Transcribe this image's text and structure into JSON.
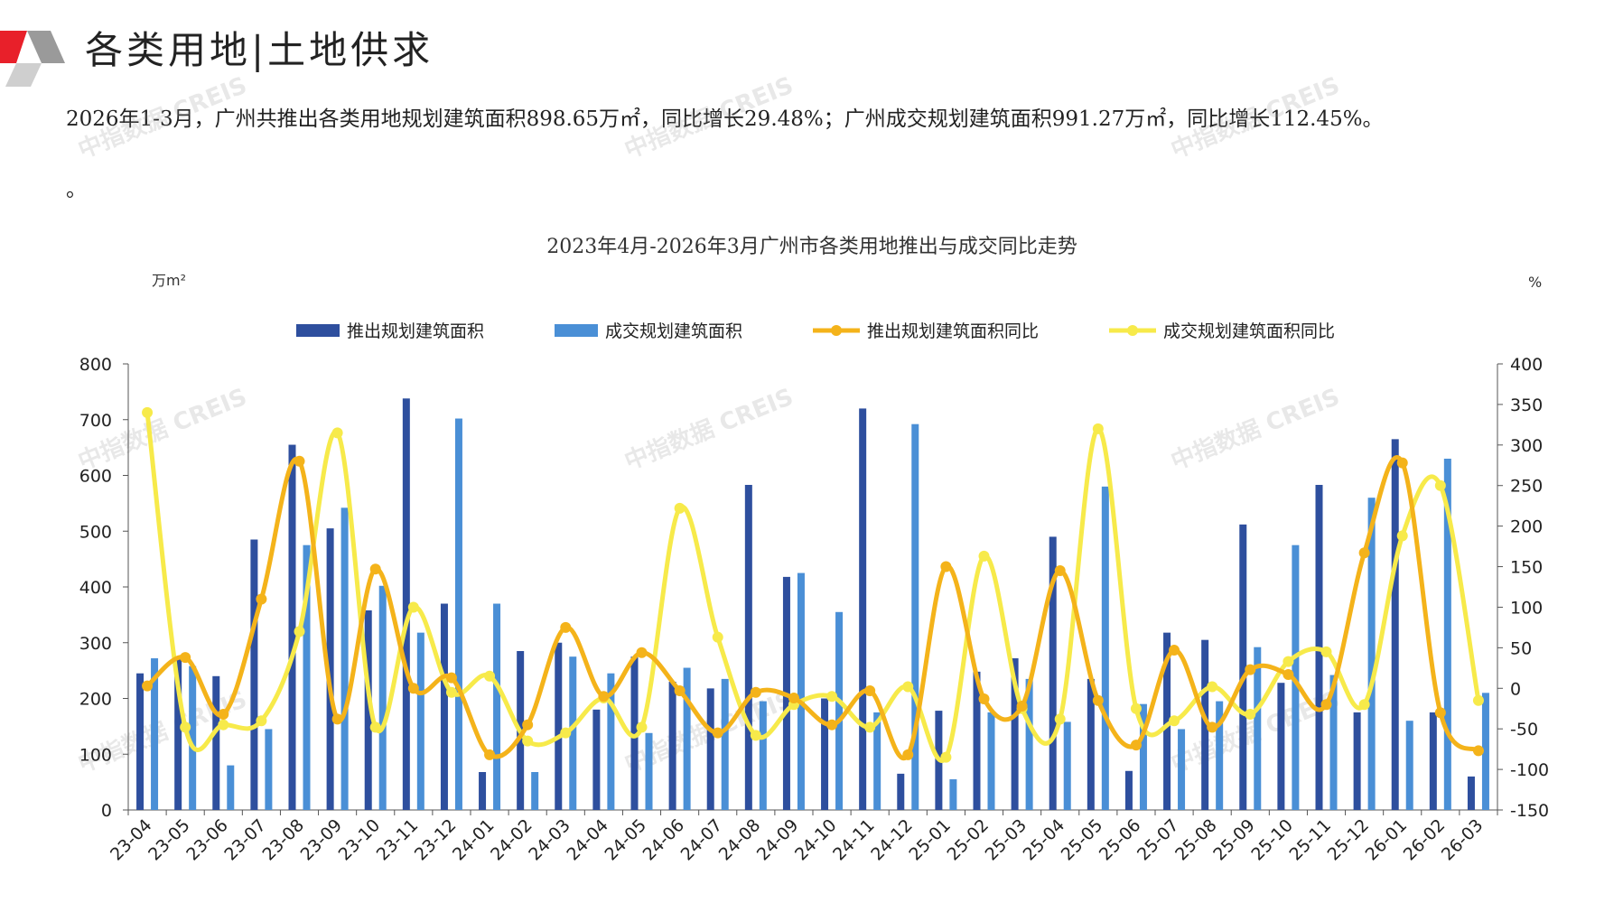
{
  "header": {
    "title": "各类用地|土地供求",
    "accent_colors": [
      "#e8202a",
      "#9a9a9a"
    ]
  },
  "summary": {
    "text": "2026年1-3月，广州共推出各类用地规划建筑面积898.65万㎡，同比增长29.48%；广州成交规划建筑面积991.27万㎡，同比增长112.45%。",
    "trailing": "。"
  },
  "watermark": "中指数据 CREIS",
  "chart_data": {
    "type": "bar",
    "title": "2023年4月-2026年3月广州市各类用地推出与成交同比走势",
    "left_unit": "万m²",
    "right_unit": "%",
    "ylim_left": [
      0,
      800
    ],
    "ylim_right": [
      -150,
      400
    ],
    "yticks_left": [
      0,
      100,
      200,
      300,
      400,
      500,
      600,
      700,
      800
    ],
    "yticks_right": [
      -150,
      -100,
      -50,
      0,
      50,
      100,
      150,
      200,
      250,
      300,
      350,
      400
    ],
    "legend_position": "top",
    "categories": [
      "23-04",
      "23-05",
      "23-06",
      "23-07",
      "23-08",
      "23-09",
      "23-10",
      "23-11",
      "23-12",
      "24-01",
      "24-02",
      "24-03",
      "24-04",
      "24-05",
      "24-06",
      "24-07",
      "24-08",
      "24-09",
      "24-10",
      "24-11",
      "24-12",
      "25-01",
      "25-02",
      "25-03",
      "25-04",
      "25-05",
      "25-06",
      "25-07",
      "25-08",
      "25-09",
      "25-10",
      "25-11",
      "25-12",
      "26-01",
      "26-02",
      "26-03"
    ],
    "series": [
      {
        "name": "推出规划建筑面积",
        "kind": "bar",
        "axis": "left",
        "color": "#2e4f9e",
        "values": [
          245,
          270,
          240,
          485,
          655,
          505,
          358,
          738,
          370,
          68,
          285,
          300,
          180,
          275,
          230,
          218,
          583,
          418,
          200,
          720,
          65,
          178,
          248,
          272,
          490,
          235,
          70,
          318,
          305,
          512,
          228,
          583,
          175,
          665,
          175,
          60
        ]
      },
      {
        "name": "成交规划建筑面积",
        "kind": "bar",
        "axis": "left",
        "color": "#4a8fd6",
        "values": [
          272,
          258,
          80,
          145,
          475,
          542,
          402,
          318,
          702,
          370,
          68,
          275,
          245,
          138,
          255,
          235,
          195,
          425,
          355,
          175,
          692,
          55,
          175,
          235,
          158,
          580,
          190,
          145,
          195,
          292,
          475,
          242,
          560,
          160,
          630,
          210
        ]
      },
      {
        "name": "推出规划建筑面积同比",
        "kind": "line",
        "axis": "right",
        "color": "#f4b31a",
        "values": [
          3,
          38,
          -32,
          110,
          280,
          -38,
          147,
          0,
          13,
          -82,
          -45,
          75,
          -10,
          44,
          -3,
          -55,
          -5,
          -12,
          -45,
          -3,
          -82,
          150,
          -13,
          -22,
          145,
          -15,
          -70,
          47,
          -48,
          23,
          17,
          -20,
          167,
          278,
          -30,
          -77
        ]
      },
      {
        "name": "成交规划建筑面积同比",
        "kind": "line",
        "axis": "right",
        "color": "#f7ea4a",
        "values": [
          340,
          -48,
          -45,
          -40,
          70,
          315,
          -48,
          100,
          -5,
          15,
          -65,
          -55,
          -12,
          -48,
          222,
          63,
          -58,
          -20,
          -10,
          -48,
          2,
          -85,
          163,
          -25,
          -38,
          320,
          -25,
          -40,
          2,
          -32,
          33,
          45,
          -20,
          188,
          250,
          -15
        ]
      }
    ]
  }
}
